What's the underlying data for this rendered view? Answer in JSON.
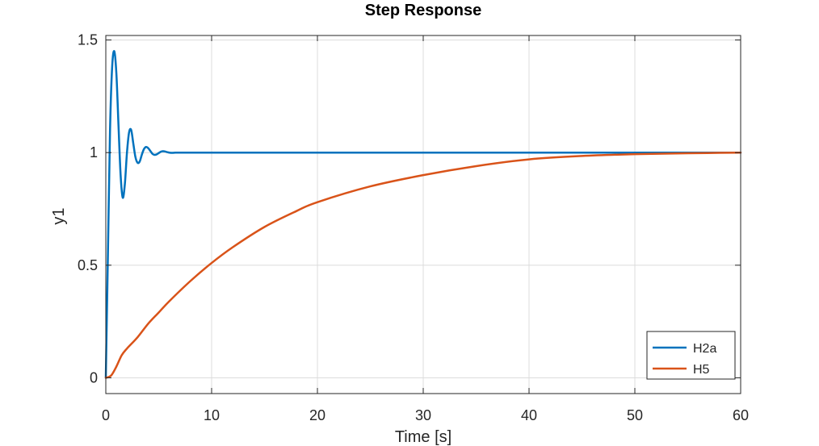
{
  "chart_data": {
    "type": "line",
    "title": "Step Response",
    "xlabel": "Time [s]",
    "ylabel": "y1",
    "xlim": [
      0,
      60
    ],
    "ylim": [
      -0.07,
      1.52
    ],
    "xticks": [
      0,
      10,
      20,
      30,
      40,
      50,
      60
    ],
    "xtick_labels": [
      "0",
      "10",
      "20",
      "30",
      "40",
      "50",
      "60"
    ],
    "yticks": [
      0,
      0.5,
      1,
      1.5
    ],
    "ytick_labels": [
      "0",
      "0.5",
      "1",
      "1.5"
    ],
    "grid": true,
    "legend_position": "bottom-right",
    "series": [
      {
        "name": "H2a",
        "color": "#0072BD",
        "x": [
          0,
          0.2,
          0.4,
          0.6,
          0.8,
          1.0,
          1.2,
          1.4,
          1.6,
          1.8,
          2.0,
          2.2,
          2.4,
          2.6,
          2.8,
          3.0,
          3.2,
          3.4,
          3.6,
          3.8,
          4.0,
          4.2,
          4.4,
          4.6,
          4.8,
          5.0,
          5.2,
          5.4,
          5.6,
          5.8,
          6.0,
          6.3,
          6.6,
          7.0,
          7.5,
          8.0,
          10,
          15,
          20,
          30,
          40,
          50,
          60
        ],
        "y": [
          0,
          0.55,
          1.1,
          1.38,
          1.45,
          1.35,
          1.12,
          0.9,
          0.8,
          0.86,
          1.0,
          1.09,
          1.1,
          1.04,
          0.98,
          0.955,
          0.96,
          0.99,
          1.015,
          1.025,
          1.02,
          1.008,
          0.995,
          0.99,
          0.992,
          0.998,
          1.004,
          1.006,
          1.005,
          1.002,
          1.0,
          0.999,
          1.0,
          1.0,
          1.0,
          1.0,
          1.0,
          1.0,
          1.0,
          1.0,
          1.0,
          1.0,
          1.0
        ]
      },
      {
        "name": "H5",
        "color": "#D95319",
        "x": [
          0,
          0.5,
          1,
          1.5,
          2,
          3,
          4,
          5,
          6,
          8,
          10,
          12,
          15,
          18,
          20,
          25,
          30,
          35,
          40,
          45,
          50,
          55,
          60
        ],
        "y": [
          0,
          0.01,
          0.05,
          0.1,
          0.13,
          0.18,
          0.24,
          0.29,
          0.34,
          0.43,
          0.51,
          0.58,
          0.67,
          0.74,
          0.78,
          0.85,
          0.9,
          0.94,
          0.97,
          0.985,
          0.993,
          0.997,
          1.0
        ]
      }
    ]
  }
}
